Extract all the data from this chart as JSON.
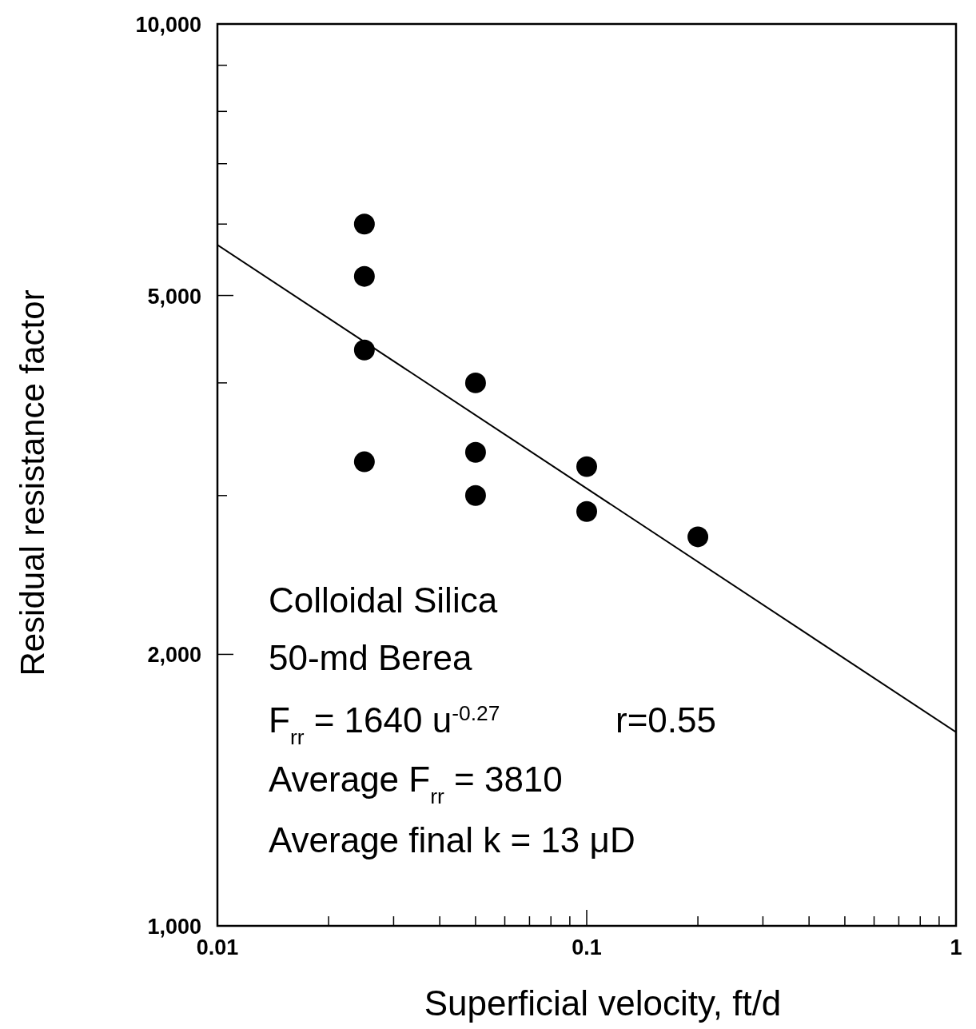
{
  "chart_data": {
    "type": "scatter",
    "xlabel": "Superficial velocity, ft/d",
    "ylabel": "Residual resistance factor",
    "log": "xy",
    "xlim": [
      0.01,
      1
    ],
    "ylim": [
      1000,
      10000
    ],
    "xticks": [
      {
        "value": 0.01,
        "label": "0.01"
      },
      {
        "value": 0.02,
        "label": null
      },
      {
        "value": 0.03,
        "label": null
      },
      {
        "value": 0.04,
        "label": null
      },
      {
        "value": 0.05,
        "label": null
      },
      {
        "value": 0.06,
        "label": null
      },
      {
        "value": 0.07,
        "label": null
      },
      {
        "value": 0.08,
        "label": null
      },
      {
        "value": 0.09,
        "label": null
      },
      {
        "value": 0.1,
        "label": "0.1"
      },
      {
        "value": 0.2,
        "label": null
      },
      {
        "value": 0.3,
        "label": null
      },
      {
        "value": 0.4,
        "label": null
      },
      {
        "value": 0.5,
        "label": null
      },
      {
        "value": 0.6,
        "label": null
      },
      {
        "value": 0.7,
        "label": null
      },
      {
        "value": 0.8,
        "label": null
      },
      {
        "value": 0.9,
        "label": null
      },
      {
        "value": 1,
        "label": "1"
      }
    ],
    "yticks": [
      {
        "value": 1000,
        "label": "1,000"
      },
      {
        "value": 2000,
        "label": "2,000"
      },
      {
        "value": 3000,
        "label": null
      },
      {
        "value": 4000,
        "label": null
      },
      {
        "value": 5000,
        "label": "5,000"
      },
      {
        "value": 6000,
        "label": null
      },
      {
        "value": 7000,
        "label": null
      },
      {
        "value": 8000,
        "label": null
      },
      {
        "value": 9000,
        "label": null
      },
      {
        "value": 10000,
        "label": "10,000"
      }
    ],
    "series": [
      {
        "marker": "circle",
        "color": "#000000",
        "x": [
          0.025,
          0.025,
          0.025,
          0.025,
          0.05,
          0.05,
          0.05,
          0.1,
          0.1,
          0.2
        ],
        "values": [
          6000,
          5250,
          4350,
          3270,
          4000,
          3350,
          3000,
          3230,
          2880,
          2700
        ]
      },
      {
        "type": "line",
        "color": "#000000",
        "x": [
          0.01,
          1
        ],
        "values": [
          5690,
          1640
        ]
      }
    ],
    "annotations": [
      "Colloidal Silica",
      "50-md Berea",
      "F$_{rr}$ = 1640 u$^{-0.27}$",
      "r=0.55",
      "Average F$_{rr}$ = 3810",
      "Average final k = 13 μD"
    ]
  }
}
